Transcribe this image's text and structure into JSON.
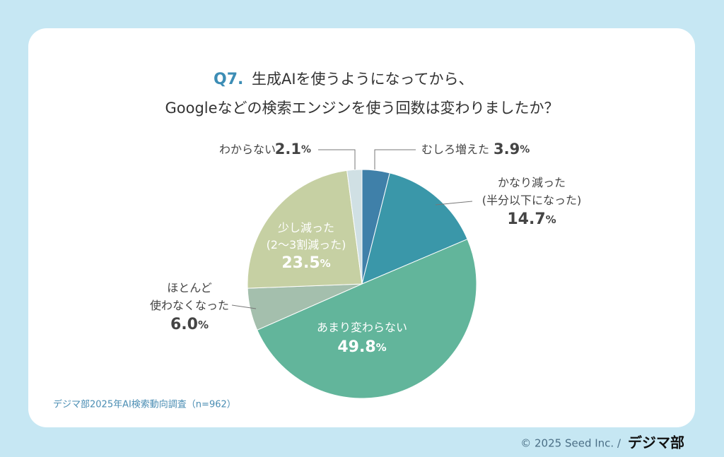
{
  "chart_data": {
    "type": "pie",
    "question": "Q7.",
    "title": "生成AIを使うようになってから、\nGoogleなどの検索エンジンを使う回数は変わりましたか？",
    "categories": [
      "むしろ増えた",
      "かなり減った\n(半分以下になった)",
      "あまり変わらない",
      "ほとんど\n使わなくなった",
      "少し減った\n(2〜3割減った)",
      "わからない"
    ],
    "values": [
      3.9,
      14.7,
      49.8,
      6.0,
      23.5,
      2.1
    ],
    "value_labels": [
      "3.9%",
      "14.7%",
      "49.8%",
      "6.0%",
      "23.5%",
      "2.1%"
    ],
    "colors": [
      "#3f80a9",
      "#3a97a9",
      "#62b59b",
      "#a4bfad",
      "#c6d0a3",
      "#d0e0e4"
    ],
    "source": "デジマ部2025年AI検索動向調査（n=962）"
  },
  "footer": {
    "copyright": "© 2025 Seed Inc. /",
    "logo": "デジマ部"
  }
}
